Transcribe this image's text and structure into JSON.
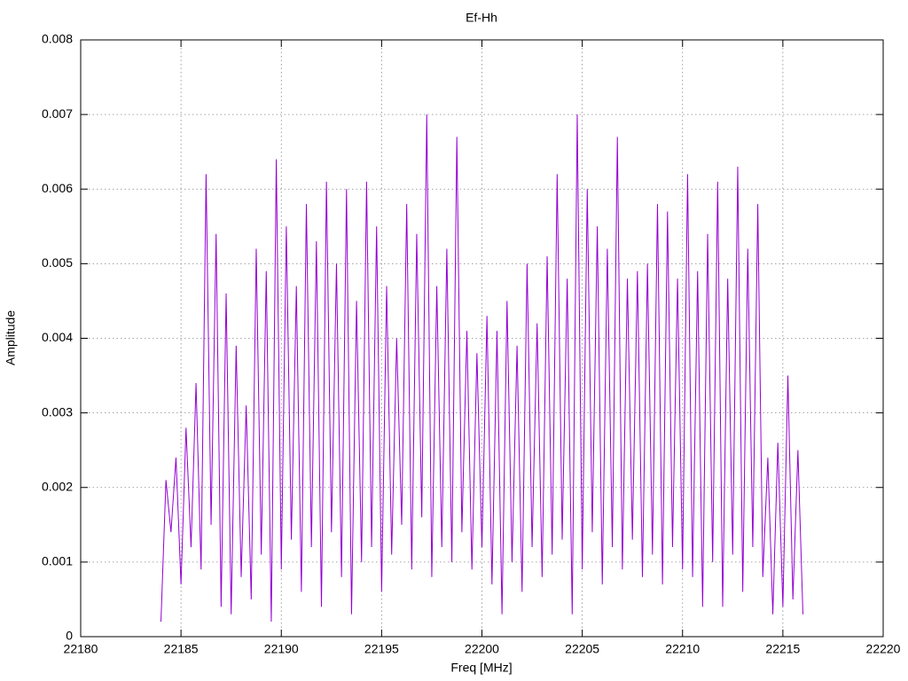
{
  "chart_data": {
    "type": "line",
    "title": "Ef-Hh",
    "x_label": "Freq [MHz]",
    "y_label": "Amplitude",
    "x": [
      22184,
      22184.25,
      22184.5,
      22184.75,
      22185,
      22185.25,
      22185.5,
      22185.75,
      22186,
      22186.25,
      22186.5,
      22186.75,
      22187,
      22187.25,
      22187.5,
      22187.75,
      22188,
      22188.25,
      22188.5,
      22188.75,
      22189,
      22189.25,
      22189.5,
      22189.75,
      22190,
      22190.25,
      22190.5,
      22190.75,
      22191,
      22191.25,
      22191.5,
      22191.75,
      22192,
      22192.25,
      22192.5,
      22192.75,
      22193,
      22193.25,
      22193.5,
      22193.75,
      22194,
      22194.25,
      22194.5,
      22194.75,
      22195,
      22195.25,
      22195.5,
      22195.75,
      22196,
      22196.25,
      22196.5,
      22196.75,
      22197,
      22197.25,
      22197.5,
      22197.75,
      22198,
      22198.25,
      22198.5,
      22198.75,
      22199,
      22199.25,
      22199.5,
      22199.75,
      22200,
      22200.25,
      22200.5,
      22200.75,
      22201,
      22201.25,
      22201.5,
      22201.75,
      22202,
      22202.25,
      22202.5,
      22202.75,
      22203,
      22203.25,
      22203.5,
      22203.75,
      22204,
      22204.25,
      22204.5,
      22204.75,
      22205,
      22205.25,
      22205.5,
      22205.75,
      22206,
      22206.25,
      22206.5,
      22206.75,
      22207,
      22207.25,
      22207.5,
      22207.75,
      22208,
      22208.25,
      22208.5,
      22208.75,
      22209,
      22209.25,
      22209.5,
      22209.75,
      22210,
      22210.25,
      22210.5,
      22210.75,
      22211,
      22211.25,
      22211.5,
      22211.75,
      22212,
      22212.25,
      22212.5,
      22212.75,
      22213,
      22213.25,
      22213.5,
      22213.75,
      22214,
      22214.25,
      22214.5,
      22214.75,
      22215,
      22215.25,
      22215.5,
      22215.75,
      22216
    ],
    "series": [
      {
        "color": "#9400d3",
        "values": [
          0.0002,
          0.0021,
          0.0014,
          0.0024,
          0.0007,
          0.0028,
          0.0012,
          0.0034,
          0.0009,
          0.0062,
          0.0015,
          0.0054,
          0.0004,
          0.0046,
          0.0003,
          0.0039,
          0.0008,
          0.0031,
          0.0005,
          0.0052,
          0.0011,
          0.0049,
          0.0002,
          0.0064,
          0.0009,
          0.0055,
          0.0013,
          0.0047,
          0.0006,
          0.0058,
          0.0012,
          0.0053,
          0.0004,
          0.0061,
          0.0014,
          0.005,
          0.0008,
          0.006,
          0.0003,
          0.0045,
          0.001,
          0.0061,
          0.0012,
          0.0055,
          0.0006,
          0.0047,
          0.0011,
          0.004,
          0.0015,
          0.0058,
          0.0009,
          0.0054,
          0.0016,
          0.007,
          0.0008,
          0.0047,
          0.0012,
          0.0052,
          0.001,
          0.0067,
          0.0014,
          0.0041,
          0.0009,
          0.0038,
          0.0012,
          0.0043,
          0.0007,
          0.0041,
          0.0003,
          0.0045,
          0.001,
          0.0039,
          0.0006,
          0.005,
          0.0012,
          0.0042,
          0.0008,
          0.0051,
          0.0011,
          0.0062,
          0.0013,
          0.0048,
          0.0003,
          0.007,
          0.0009,
          0.006,
          0.0014,
          0.0055,
          0.0007,
          0.0052,
          0.0012,
          0.0067,
          0.0009,
          0.0048,
          0.0013,
          0.0049,
          0.0008,
          0.005,
          0.0011,
          0.0058,
          0.0007,
          0.0057,
          0.0012,
          0.0048,
          0.0009,
          0.0062,
          0.0008,
          0.0049,
          0.0004,
          0.0054,
          0.001,
          0.0061,
          0.0004,
          0.0048,
          0.0011,
          0.0063,
          0.0006,
          0.0052,
          0.0012,
          0.0058,
          0.0008,
          0.0024,
          0.0003,
          0.0026,
          0.0004,
          0.0035,
          0.0005,
          0.0025,
          0.0003
        ]
      }
    ],
    "xlim": [
      22180,
      22220
    ],
    "xticks": [
      22180,
      22185,
      22190,
      22195,
      22200,
      22205,
      22210,
      22215,
      22220
    ],
    "ylim": [
      0,
      0.008
    ],
    "yticks": [
      0,
      0.001,
      0.002,
      0.003,
      0.004,
      0.005,
      0.006,
      0.007,
      0.008
    ],
    "grid": true
  }
}
